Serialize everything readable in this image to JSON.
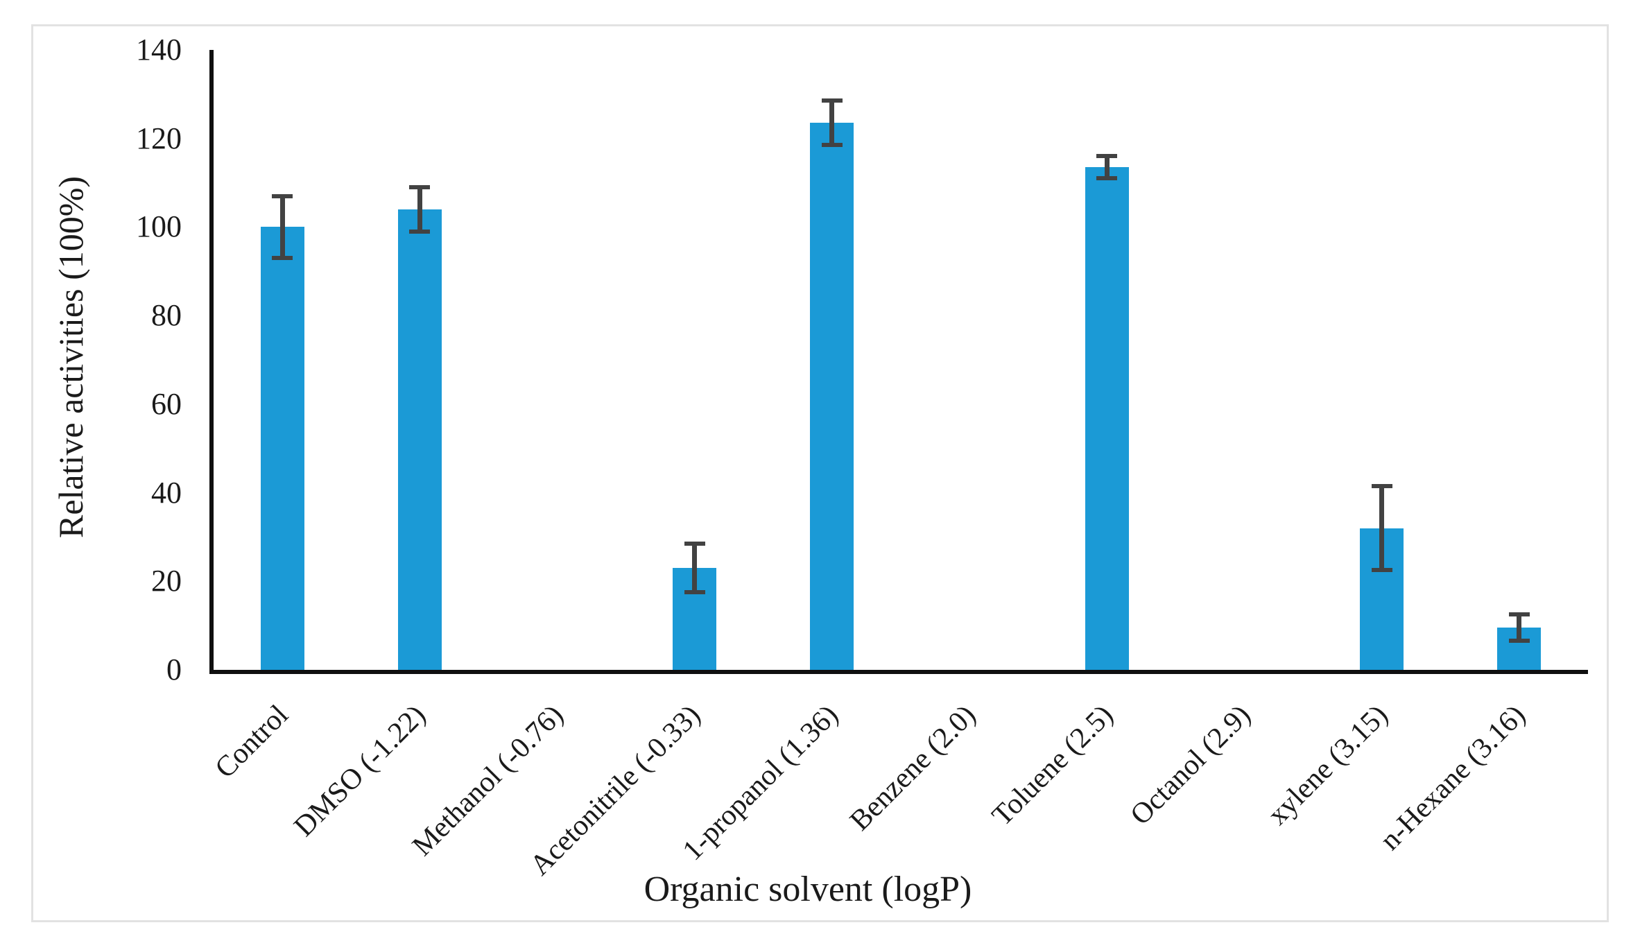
{
  "figure": {
    "background_color": "#ffffff",
    "border_color": "#e2e2e2"
  },
  "chart_data": {
    "type": "bar",
    "title": "",
    "xlabel": "Organic solvent (logP)",
    "ylabel": "Relative activities (100%)",
    "ylim": [
      0,
      140
    ],
    "ytick_step": 20,
    "ytick_labels": [
      "0",
      "20",
      "40",
      "60",
      "80",
      "100",
      "120",
      "140"
    ],
    "grid": false,
    "legend": "none",
    "bar_color": "#1b9ad6",
    "error_bar_color": "#424242",
    "axis_color": "#0f0f0f",
    "categories": [
      "Control",
      "DMSO (-1.22)",
      "Methanol (-0.76)",
      "Acetonitrile (-0.33)",
      "1-propanol (1.36)",
      "Benzene (2.0)",
      "Toluene (2.5)",
      "Octanol (2.9)",
      "xylene (3.15)",
      "n-Hexane (3.16)"
    ],
    "values": [
      100,
      104,
      0,
      23,
      123.5,
      0,
      113.5,
      0,
      32,
      9.5
    ],
    "errors": [
      7,
      5,
      0,
      5.5,
      5,
      0,
      2.5,
      0,
      9.5,
      3
    ]
  }
}
